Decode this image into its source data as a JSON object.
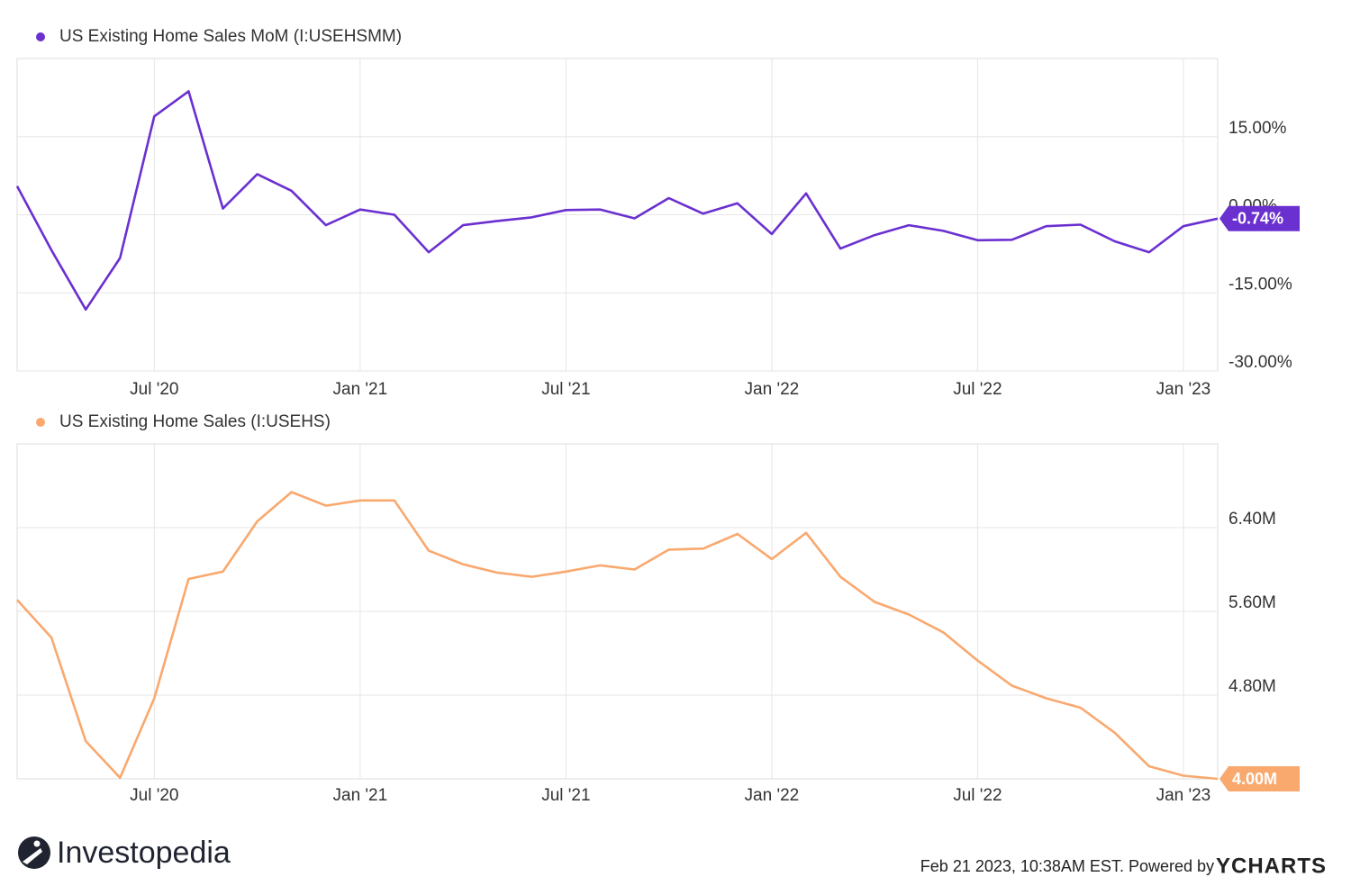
{
  "chart_data": [
    {
      "type": "line",
      "title": "US Existing Home Sales MoM (I:USEHSMM)",
      "x": [
        "2020-02",
        "2020-03",
        "2020-04",
        "2020-05",
        "2020-06",
        "2020-07",
        "2020-08",
        "2020-09",
        "2020-10",
        "2020-11",
        "2020-12",
        "2021-01",
        "2021-02",
        "2021-03",
        "2021-04",
        "2021-05",
        "2021-06",
        "2021-07",
        "2021-08",
        "2021-09",
        "2021-10",
        "2021-11",
        "2021-12",
        "2022-01",
        "2022-02",
        "2022-03",
        "2022-04",
        "2022-05",
        "2022-06",
        "2022-07",
        "2022-08",
        "2022-09",
        "2022-10",
        "2022-11",
        "2022-12",
        "2023-01"
      ],
      "series": [
        {
          "name": "US Existing Home Sales MoM (I:USEHSMM)",
          "color": "#6a30d0",
          "values": [
            5.5,
            -6.8,
            -18.2,
            -8.3,
            18.9,
            23.7,
            1.2,
            7.8,
            4.6,
            -2.0,
            1.0,
            0.0,
            -7.2,
            -2.0,
            -1.2,
            -0.5,
            0.9,
            1.0,
            -0.7,
            3.2,
            0.2,
            2.2,
            -3.7,
            4.1,
            -6.5,
            -3.9,
            -2.0,
            -3.1,
            -4.9,
            -4.8,
            -2.2,
            -1.9,
            -5.1,
            -7.2,
            -2.2,
            -0.74
          ],
          "value_labels": [
            null,
            null,
            null,
            null,
            null,
            null,
            null,
            null,
            null,
            null,
            null,
            null,
            null,
            null,
            null,
            null,
            null,
            null,
            null,
            null,
            null,
            null,
            null,
            null,
            null,
            null,
            null,
            null,
            null,
            null,
            null,
            null,
            null,
            null,
            null,
            "-0.74%"
          ]
        }
      ],
      "ylim": [
        -30,
        30
      ],
      "yticks": [
        {
          "value": -30,
          "label": "-30.00%"
        },
        {
          "value": -15,
          "label": "-15.00%"
        },
        {
          "value": 0,
          "label": "0.00%"
        },
        {
          "value": 15,
          "label": "15.00%"
        }
      ],
      "xticks": [
        {
          "value": "2020-07",
          "label": "Jul '20"
        },
        {
          "value": "2021-01",
          "label": "Jan '21"
        },
        {
          "value": "2021-07",
          "label": "Jul '21"
        },
        {
          "value": "2022-01",
          "label": "Jan '22"
        },
        {
          "value": "2022-07",
          "label": "Jul '22"
        },
        {
          "value": "2023-01",
          "label": "Jan '23"
        }
      ],
      "grid": true
    },
    {
      "type": "line",
      "title": "US Existing Home Sales (I:USEHS)",
      "x": [
        "2020-02",
        "2020-03",
        "2020-04",
        "2020-05",
        "2020-06",
        "2020-07",
        "2020-08",
        "2020-09",
        "2020-10",
        "2020-11",
        "2020-12",
        "2021-01",
        "2021-02",
        "2021-03",
        "2021-04",
        "2021-05",
        "2021-06",
        "2021-07",
        "2021-08",
        "2021-09",
        "2021-10",
        "2021-11",
        "2021-12",
        "2022-01",
        "2022-02",
        "2022-03",
        "2022-04",
        "2022-05",
        "2022-06",
        "2022-07",
        "2022-08",
        "2022-09",
        "2022-10",
        "2022-11",
        "2022-12",
        "2023-01"
      ],
      "series": [
        {
          "name": "US Existing Home Sales (I:USEHS)",
          "color": "#f9a86e",
          "values": [
            5.71,
            5.35,
            4.36,
            4.01,
            4.77,
            5.91,
            5.98,
            6.46,
            6.74,
            6.61,
            6.66,
            6.66,
            6.18,
            6.05,
            5.97,
            5.93,
            5.98,
            6.04,
            6.0,
            6.19,
            6.2,
            6.34,
            6.1,
            6.35,
            5.93,
            5.69,
            5.57,
            5.4,
            5.13,
            4.89,
            4.77,
            4.68,
            4.44,
            4.12,
            4.03,
            4.0
          ],
          "value_labels": [
            null,
            null,
            null,
            null,
            null,
            null,
            null,
            null,
            null,
            null,
            null,
            null,
            null,
            null,
            null,
            null,
            null,
            null,
            null,
            null,
            null,
            null,
            null,
            null,
            null,
            null,
            null,
            null,
            null,
            null,
            null,
            null,
            null,
            null,
            null,
            "4.00M"
          ]
        }
      ],
      "ylim": [
        4.0,
        7.2
      ],
      "yticks": [
        {
          "value": 4.8,
          "label": "4.80M"
        },
        {
          "value": 5.6,
          "label": "5.60M"
        },
        {
          "value": 6.4,
          "label": "6.40M"
        }
      ],
      "xticks": [
        {
          "value": "2020-07",
          "label": "Jul '20"
        },
        {
          "value": "2021-01",
          "label": "Jan '21"
        },
        {
          "value": "2021-07",
          "label": "Jul '21"
        },
        {
          "value": "2022-01",
          "label": "Jan '22"
        },
        {
          "value": "2022-07",
          "label": "Jul '22"
        },
        {
          "value": "2023-01",
          "label": "Jan '23"
        }
      ],
      "grid": true
    }
  ],
  "footer": {
    "brand": "Investopedia",
    "timestamp": "Feb 21 2023, 10:38AM EST. Powered by",
    "provider": "YCHARTS"
  }
}
